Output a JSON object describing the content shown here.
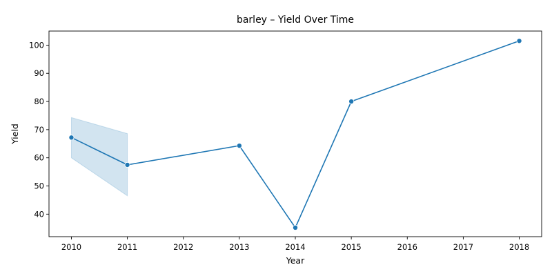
{
  "chart_data": {
    "type": "line",
    "title": "barley – Yield Over Time",
    "xlabel": "Year",
    "ylabel": "Yield",
    "x_ticks": [
      2010,
      2011,
      2012,
      2013,
      2014,
      2015,
      2016,
      2017,
      2018
    ],
    "y_ticks": [
      40,
      50,
      60,
      70,
      80,
      90,
      100
    ],
    "xlim": [
      2009.6,
      2018.4
    ],
    "ylim": [
      32,
      105
    ],
    "grid": false,
    "series": [
      {
        "color": "#1f77b4",
        "points": [
          {
            "x": 2010,
            "y": 67.2
          },
          {
            "x": 2011,
            "y": 57.5
          },
          {
            "x": 2013,
            "y": 64.3
          },
          {
            "x": 2014,
            "y": 35.2
          },
          {
            "x": 2015,
            "y": 80.0
          },
          {
            "x": 2018,
            "y": 101.5
          }
        ],
        "confidence_band": {
          "color": "#1f77b4",
          "points": [
            {
              "x": 2010,
              "low": 60.0,
              "high": 74.3
            },
            {
              "x": 2011,
              "low": 46.5,
              "high": 68.6
            }
          ]
        }
      }
    ]
  }
}
